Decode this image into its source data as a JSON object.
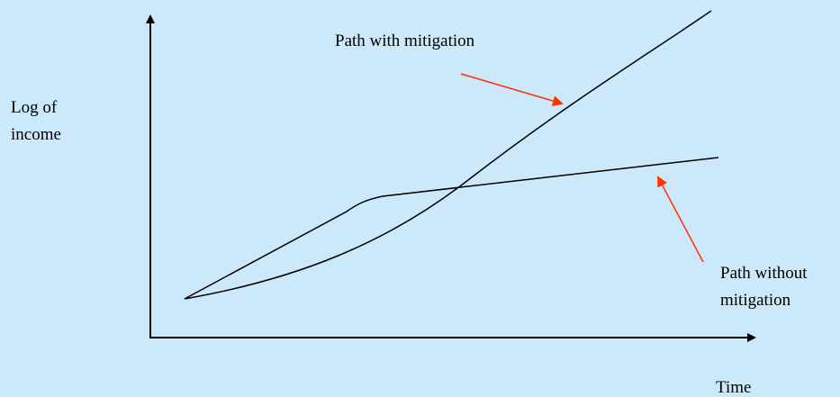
{
  "y_axis_label": {
    "lines": [
      "Log of",
      "income"
    ]
  },
  "x_axis_label": "Time",
  "annotations": [
    {
      "lines": [
        "Path with mitigation"
      ]
    },
    {
      "lines": [
        "Path without",
        "mitigation"
      ]
    }
  ]
}
